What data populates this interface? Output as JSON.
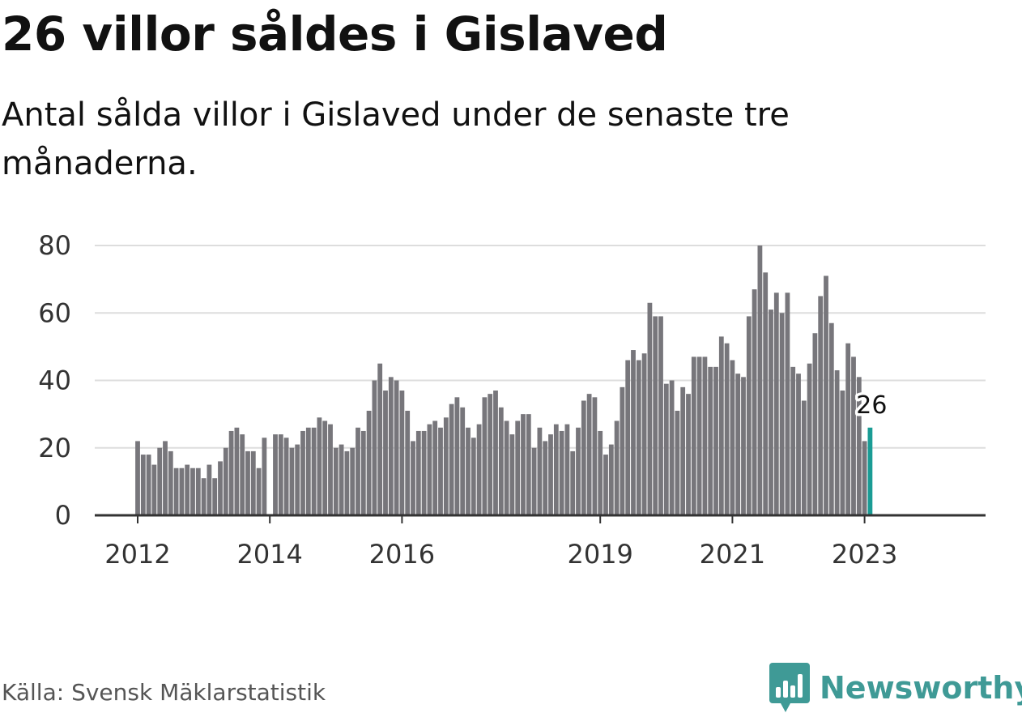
{
  "headline": "26 villor såldes i Gislaved",
  "subheadline": "Antal sålda villor i Gislaved under de senaste tre månaderna.",
  "source": "Källa: Svensk Mäklarstatistik",
  "brand": "Newsworthy",
  "colors": {
    "bar": "#77767b",
    "highlight": "#1a9c95",
    "gridline": "#dddddd",
    "axis": "#333333",
    "brand": "#3f9a96"
  },
  "chart_data": {
    "type": "bar",
    "title": "26 villor såldes i Gislaved",
    "xlabel": "",
    "ylabel": "",
    "ylim": [
      0,
      80
    ],
    "yticks": [
      0,
      20,
      40,
      60,
      80
    ],
    "x_tick_labels": [
      {
        "label": "2012",
        "index": 0
      },
      {
        "label": "2014",
        "index": 24
      },
      {
        "label": "2016",
        "index": 48
      },
      {
        "label": "2019",
        "index": 84
      },
      {
        "label": "2021",
        "index": 108
      },
      {
        "label": "2023",
        "index": 132
      }
    ],
    "start": "2012-01",
    "end": "2023-02",
    "values": [
      22,
      18,
      18,
      15,
      20,
      22,
      19,
      14,
      14,
      15,
      14,
      14,
      11,
      15,
      11,
      16,
      20,
      25,
      26,
      24,
      19,
      19,
      14,
      23,
      null,
      24,
      24,
      23,
      20,
      21,
      25,
      26,
      26,
      29,
      28,
      27,
      20,
      21,
      19,
      20,
      26,
      25,
      31,
      40,
      45,
      37,
      41,
      40,
      37,
      31,
      22,
      25,
      25,
      27,
      28,
      26,
      29,
      33,
      35,
      32,
      26,
      23,
      27,
      35,
      36,
      37,
      32,
      28,
      24,
      28,
      30,
      30,
      20,
      26,
      22,
      24,
      27,
      25,
      27,
      19,
      26,
      34,
      36,
      35,
      25,
      18,
      21,
      28,
      38,
      46,
      49,
      46,
      48,
      63,
      59,
      59,
      39,
      40,
      31,
      38,
      36,
      47,
      47,
      47,
      44,
      44,
      53,
      51,
      46,
      42,
      41,
      59,
      67,
      80,
      72,
      61,
      66,
      60,
      66,
      44,
      42,
      34,
      45,
      54,
      65,
      71,
      57,
      43,
      37,
      51,
      47,
      41,
      22,
      26
    ],
    "highlight": {
      "label": "26",
      "value": 26,
      "period": "2023-02"
    }
  }
}
